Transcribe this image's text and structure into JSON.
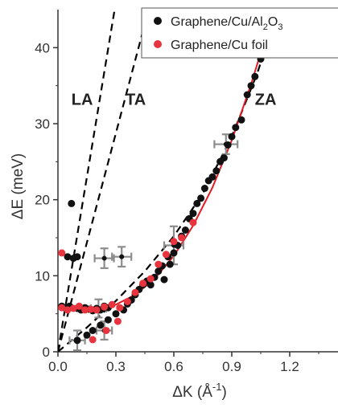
{
  "chart_data": {
    "type": "scatter",
    "xlabel": "ΔK (Å",
    "xlabel_sup": "-1",
    "xlabel_close": ")",
    "ylabel": "ΔE (meV)",
    "xlim": [
      0,
      1.45
    ],
    "ylim": [
      0,
      45
    ],
    "x_ticks": [
      0.0,
      0.3,
      0.6,
      0.9,
      1.2
    ],
    "x_tick_labels": [
      "0.0",
      "0.3",
      "0.6",
      "0.9",
      "1.2"
    ],
    "y_ticks": [
      0,
      10,
      20,
      30,
      40
    ],
    "y_tick_labels": [
      "0",
      "10",
      "20",
      "30",
      "40"
    ],
    "legend_position": "top-right",
    "mode_labels": [
      {
        "text": "LA",
        "x": 0.07,
        "y": 32.5
      },
      {
        "text": "TA",
        "x": 0.35,
        "y": 32.5
      },
      {
        "text": "ZA",
        "x": 1.02,
        "y": 32.5
      }
    ],
    "legend": {
      "series1_main": "Graphene/Cu/Al",
      "series1_sub": "2",
      "series1_tail": "O",
      "series1_tail_sub": "3",
      "series2": "Graphene/Cu foil"
    },
    "colors": {
      "series1": "#111111",
      "series2": "#e8343e",
      "fit": "#e01b23",
      "guides": "#000000",
      "errorbars": "#8c8c8c"
    },
    "guide_lines": [
      {
        "name": "LA",
        "points": [
          [
            0.0,
            0.0
          ],
          [
            0.3,
            46
          ]
        ]
      },
      {
        "name": "TA",
        "points": [
          [
            0.0,
            0.0
          ],
          [
            0.48,
            46
          ]
        ]
      },
      {
        "name": "ZA",
        "points": [
          [
            0.0,
            0.0
          ],
          [
            0.15,
            3.2
          ],
          [
            0.3,
            6.7
          ],
          [
            0.45,
            10.6
          ],
          [
            0.6,
            15.2
          ],
          [
            0.75,
            20.8
          ],
          [
            0.9,
            28.3
          ],
          [
            1.03,
            36.5
          ],
          [
            1.1,
            41.8
          ],
          [
            1.16,
            46.0
          ]
        ]
      }
    ],
    "fit_curve": {
      "name": "fit",
      "points": [
        [
          0.01,
          5.5
        ],
        [
          0.1,
          5.5
        ],
        [
          0.2,
          5.6
        ],
        [
          0.3,
          6.2
        ],
        [
          0.4,
          7.5
        ],
        [
          0.5,
          9.6
        ],
        [
          0.6,
          12.6
        ],
        [
          0.7,
          16.6
        ],
        [
          0.8,
          21.6
        ],
        [
          0.9,
          27.8
        ],
        [
          1.0,
          35.2
        ],
        [
          1.08,
          41.8
        ],
        [
          1.12,
          45.2
        ]
      ]
    },
    "series": [
      {
        "name": "Graphene/Cu/Al2O3",
        "points": [
          [
            0.02,
            6.0
          ],
          [
            0.04,
            5.8
          ],
          [
            0.05,
            12.5
          ],
          [
            0.07,
            19.5
          ],
          [
            0.08,
            12.3
          ],
          [
            0.1,
            12.5
          ],
          [
            0.06,
            6.0
          ],
          [
            0.1,
            5.7
          ],
          [
            0.12,
            5.5
          ],
          [
            0.14,
            5.8
          ],
          [
            0.16,
            5.6
          ],
          [
            0.18,
            5.4
          ],
          [
            0.2,
            5.7
          ],
          [
            0.22,
            5.5
          ],
          [
            0.24,
            6.0
          ],
          [
            0.26,
            5.8
          ],
          [
            0.1,
            1.5
          ],
          [
            0.15,
            2.2
          ],
          [
            0.18,
            2.8
          ],
          [
            0.22,
            3.5
          ],
          [
            0.26,
            4.2
          ],
          [
            0.3,
            5.0
          ],
          [
            0.34,
            5.5
          ],
          [
            0.36,
            6.3
          ],
          [
            0.38,
            6.8
          ],
          [
            0.4,
            7.5
          ],
          [
            0.42,
            8.2
          ],
          [
            0.44,
            8.8
          ],
          [
            0.46,
            9.3
          ],
          [
            0.48,
            8.8
          ],
          [
            0.5,
            9.8
          ],
          [
            0.52,
            10.6
          ],
          [
            0.54,
            11.3
          ],
          [
            0.55,
            9.5
          ],
          [
            0.57,
            12.5
          ],
          [
            0.58,
            11.5
          ],
          [
            0.6,
            13.0
          ],
          [
            0.62,
            14.0
          ],
          [
            0.64,
            15.2
          ],
          [
            0.66,
            16.0
          ],
          [
            0.68,
            17.5
          ],
          [
            0.7,
            18.2
          ],
          [
            0.72,
            19.5
          ],
          [
            0.74,
            20.2
          ],
          [
            0.76,
            21.5
          ],
          [
            0.78,
            22.5
          ],
          [
            0.8,
            23.0
          ],
          [
            0.82,
            23.8
          ],
          [
            0.84,
            25.0
          ],
          [
            0.86,
            25.5
          ],
          [
            0.88,
            27.2
          ],
          [
            0.9,
            28.3
          ],
          [
            0.92,
            29.5
          ],
          [
            0.95,
            30.5
          ],
          [
            0.98,
            33.8
          ],
          [
            1.0,
            35.0
          ],
          [
            1.02,
            36.2
          ],
          [
            1.05,
            38.5
          ],
          [
            1.08,
            39.5
          ],
          [
            1.1,
            42.0
          ]
        ]
      },
      {
        "name": "Graphene/Cu foil",
        "points": [
          [
            0.02,
            13.0
          ],
          [
            0.02,
            5.8
          ],
          [
            0.05,
            5.5
          ],
          [
            0.08,
            5.7
          ],
          [
            0.11,
            6.0
          ],
          [
            0.14,
            5.5
          ],
          [
            0.17,
            5.6
          ],
          [
            0.2,
            5.5
          ],
          [
            0.24,
            5.9
          ],
          [
            0.28,
            6.2
          ],
          [
            0.32,
            5.8
          ],
          [
            0.36,
            6.6
          ],
          [
            0.4,
            7.8
          ],
          [
            0.44,
            9.0
          ],
          [
            0.48,
            9.6
          ],
          [
            0.52,
            11.5
          ],
          [
            0.56,
            12.8
          ],
          [
            0.6,
            14.5
          ],
          [
            0.64,
            15.0
          ],
          [
            0.7,
            17.0
          ],
          [
            0.18,
            1.6
          ],
          [
            0.25,
            2.8
          ],
          [
            0.31,
            4.0
          ]
        ]
      }
    ],
    "error_points": [
      {
        "x": 0.1,
        "y": 1.5,
        "xerr": 0.04,
        "yerr": 1.3
      },
      {
        "x": 0.24,
        "y": 12.3,
        "xerr": 0.05,
        "yerr": 1.3
      },
      {
        "x": 0.33,
        "y": 12.5,
        "xerr": 0.05,
        "yerr": 1.3
      },
      {
        "x": 0.21,
        "y": 5.7,
        "xerr": 0.04,
        "yerr": 1.2
      },
      {
        "x": 0.24,
        "y": 2.8,
        "xerr": 0.04,
        "yerr": 1.2
      },
      {
        "x": 0.6,
        "y": 14.0,
        "xerr": 0.05,
        "yerr": 2.5
      },
      {
        "x": 0.87,
        "y": 27.3,
        "xerr": 0.06,
        "yerr": 1.3
      }
    ]
  }
}
